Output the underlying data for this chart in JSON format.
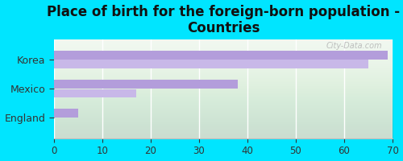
{
  "title": "Place of birth for the foreign-born population -\nCountries",
  "categories": [
    "England",
    "Mexico",
    "Korea"
  ],
  "bar1_values": [
    5,
    38,
    69
  ],
  "bar2_values": [
    0,
    17,
    65
  ],
  "bar1_color": "#b39ddb",
  "bar2_color": "#c8b8e8",
  "background_color": "#00e5ff",
  "plot_bg_top": "#f0f7f0",
  "plot_bg_bottom": "#ffffff",
  "xlim": [
    0,
    70
  ],
  "xticks": [
    0,
    10,
    20,
    30,
    40,
    50,
    60,
    70
  ],
  "bar_height": 0.3,
  "bar_gap": 0.32,
  "title_fontsize": 12,
  "tick_fontsize": 8.5,
  "label_fontsize": 9,
  "watermark": "City-Data.com"
}
